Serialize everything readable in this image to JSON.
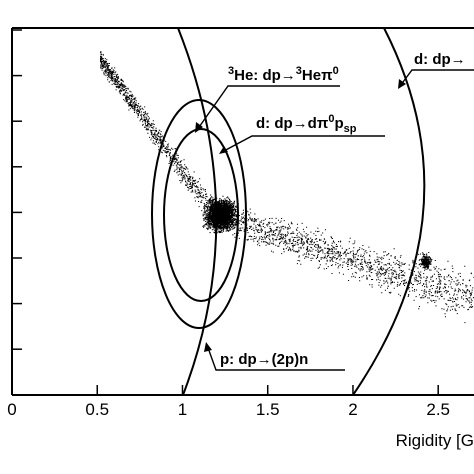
{
  "chart_data": {
    "type": "scatter",
    "x_label": "Rigidity [G",
    "xlim": [
      0,
      2.71
    ],
    "xticks": [
      0,
      0.5,
      1,
      1.5,
      2,
      2.5
    ],
    "annotations": [
      {
        "parts": [
          "3",
          "He: dp→",
          "3",
          "Heπ",
          "0"
        ]
      },
      {
        "parts": [
          "d: dp→dπ",
          "0",
          "p",
          "sp"
        ]
      },
      {
        "parts": [
          "p: dp→(2p)n"
        ]
      },
      {
        "parts": [
          "d: dp→"
        ]
      }
    ]
  }
}
